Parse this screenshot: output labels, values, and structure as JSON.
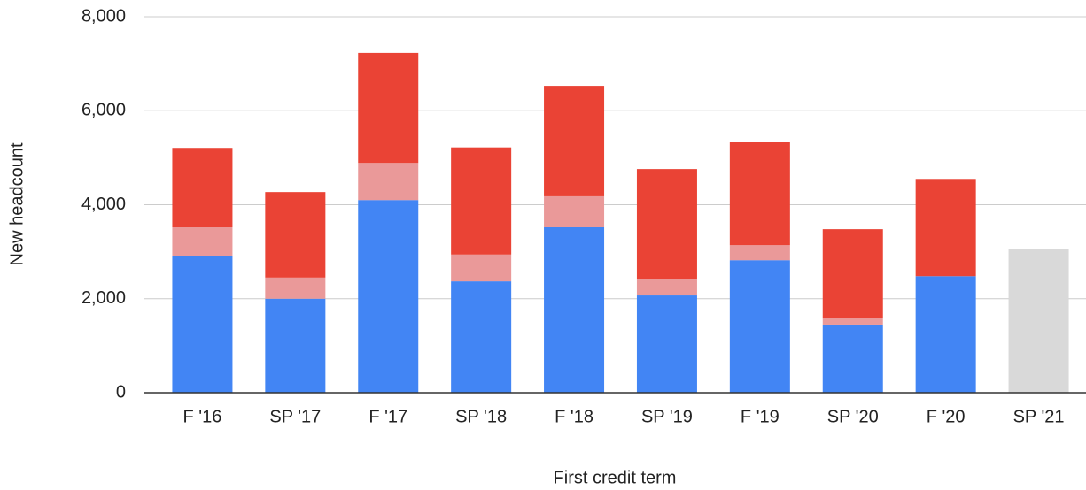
{
  "chart_data": {
    "type": "stacked_bar",
    "categories": [
      "F '16",
      "SP '17",
      "F '17",
      "SP '18",
      "F '18",
      "SP '19",
      "F '19",
      "SP '20",
      "F '20",
      "SP '21"
    ],
    "series": [
      {
        "color": "#4285f4",
        "values": [
          2900,
          2000,
          4100,
          2370,
          3520,
          2070,
          2820,
          1450,
          2480,
          null
        ]
      },
      {
        "color": "#ea9999",
        "values": [
          620,
          450,
          790,
          570,
          660,
          340,
          320,
          130,
          0,
          null
        ]
      },
      {
        "color": "#ea4335",
        "values": [
          1690,
          1820,
          2340,
          2280,
          2350,
          2350,
          2200,
          1900,
          2070,
          null
        ]
      },
      {
        "color": "#d9d9d9",
        "values": [
          null,
          null,
          null,
          null,
          null,
          null,
          null,
          null,
          null,
          3050
        ]
      }
    ],
    "xlabel": "First credit term",
    "ylabel": "New headcount",
    "ylim": [
      0,
      8000
    ],
    "yticks": [
      0,
      {
        "value": 2000,
        "label": "2,000"
      },
      {
        "value": 4000,
        "label": "4,000"
      },
      {
        "value": 6000,
        "label": "6,000"
      },
      {
        "value": 8000,
        "label": "8,000"
      }
    ],
    "grid": true
  }
}
